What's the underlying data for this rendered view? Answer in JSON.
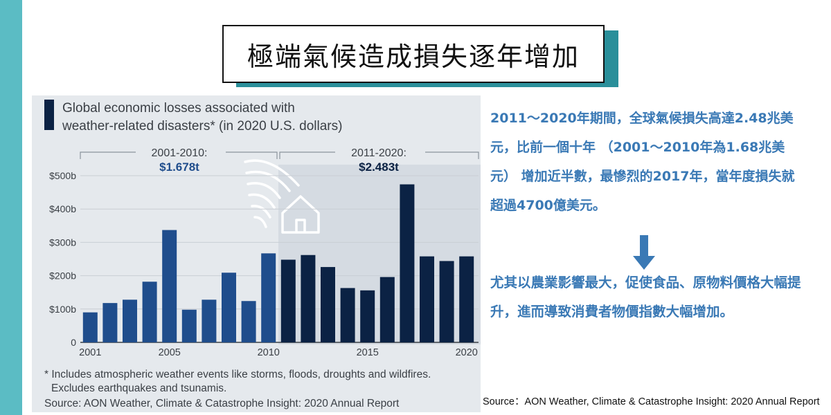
{
  "slide": {
    "title": "極端氣候造成損失逐年增加",
    "summary": "2011〜2020年期間，全球氣候損失高達2.48兆美元，比前一個十年 （2001〜2010年為1.68兆美元） 增加近半數，最慘烈的2017年，當年度損失就超過4700億美元。",
    "impact": "尤其以農業影響最大，促使食品、原物料價格大幅提升，進而導致消費者物價指數大幅增加。",
    "source": "Source：AON Weather, Climate & Catastrophe Insight: 2020 Annual Report"
  },
  "chart_data": {
    "type": "bar",
    "title": "Global economic losses associated with weather-related disasters* (in 2020 U.S. dollars)",
    "xlabel": "",
    "ylabel": "",
    "ylim": [
      0,
      500
    ],
    "y_ticks": [
      "0",
      "$100b",
      "$200b",
      "$300b",
      "$400b",
      "$500b"
    ],
    "x_ticks": [
      "2001",
      "2005",
      "2010",
      "2015",
      "2020"
    ],
    "grid": true,
    "categories": [
      "2001",
      "2002",
      "2003",
      "2004",
      "2005",
      "2006",
      "2007",
      "2008",
      "2009",
      "2010",
      "2011",
      "2012",
      "2013",
      "2014",
      "2015",
      "2016",
      "2017",
      "2018",
      "2019",
      "2020"
    ],
    "values": [
      90,
      118,
      128,
      182,
      337,
      98,
      128,
      209,
      124,
      267,
      248,
      262,
      226,
      163,
      156,
      196,
      474,
      258,
      244,
      258
    ],
    "colors": {
      "first_decade": "#1f4d8c",
      "second_decade": "#0b2244",
      "panel_bg": "#e5e9ed",
      "shaded_bg": "#d5dbe2"
    },
    "annotations": [
      {
        "label": "2001-2010:",
        "value": "$1.678t"
      },
      {
        "label": "2011-2020:",
        "value": "$2.483t"
      }
    ],
    "footnote_1": "* Includes atmospheric weather events like storms, floods, droughts and wildfires.",
    "footnote_2": "Excludes earthquakes and tsunamis.",
    "source": "Source: AON Weather, Climate & Catastrophe Insight: 2020 Annual Report"
  }
}
